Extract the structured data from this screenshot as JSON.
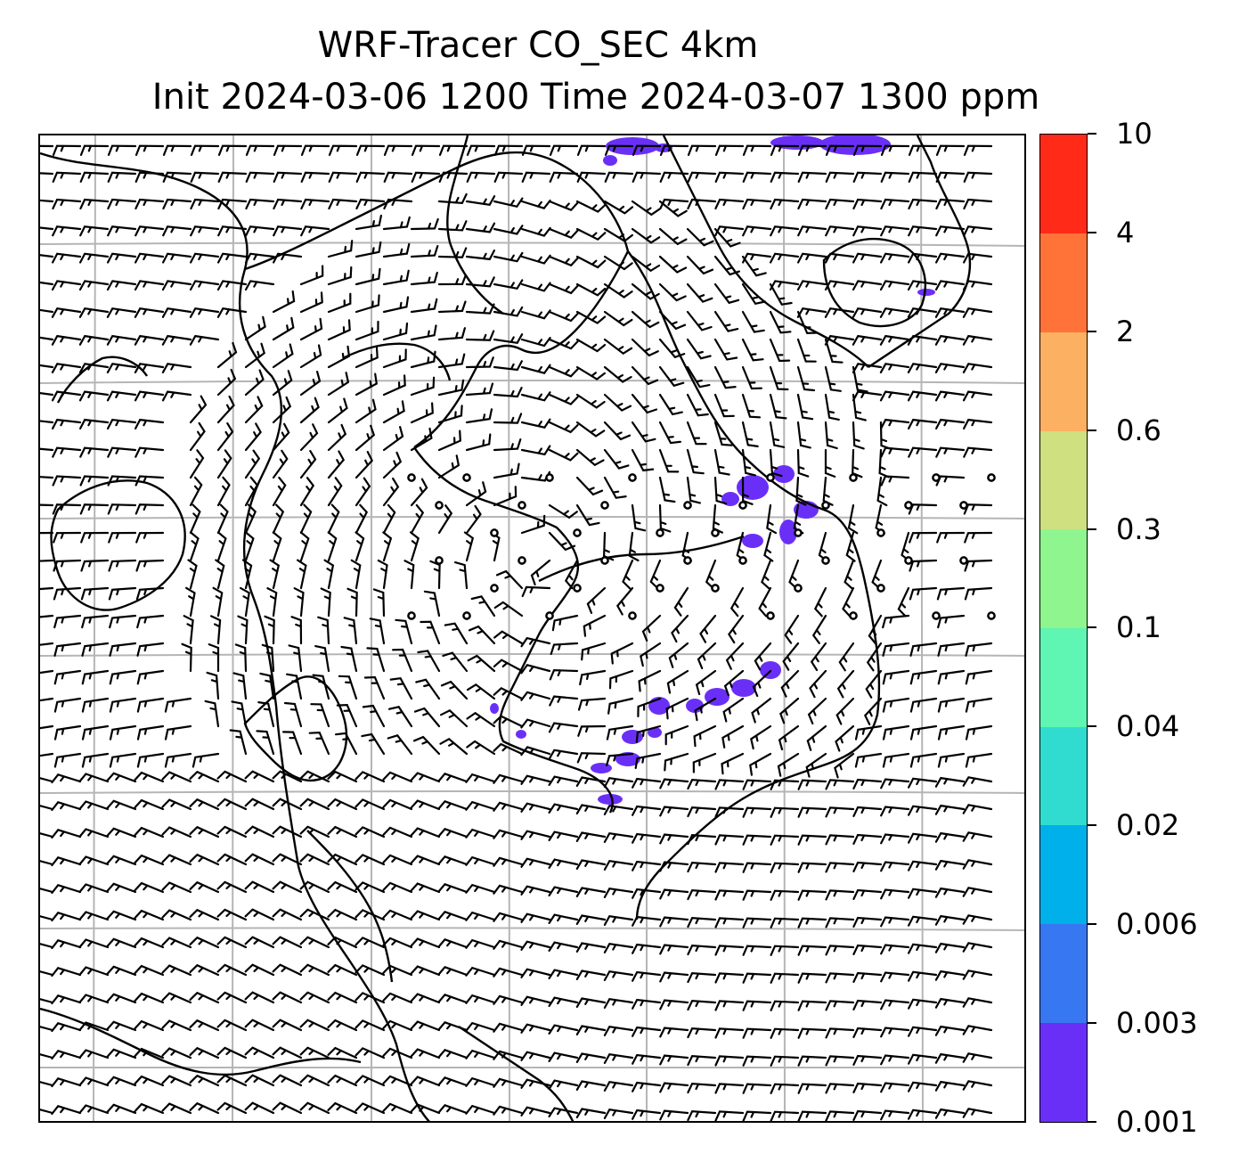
{
  "title": {
    "line1": "WRF-Tracer CO_SEC 4km",
    "line2": "Init 2024-03-06 1200 Time 2024-03-07 1300 ppm"
  },
  "colorbar": {
    "tick_labels": [
      "0.001",
      "0.003",
      "0.006",
      "0.02",
      "0.04",
      "0.1",
      "0.3",
      "0.6",
      "2",
      "4",
      "10"
    ],
    "colors": [
      "#6a2ff7",
      "#3877f2",
      "#00b0ea",
      "#30dccf",
      "#5ff5b2",
      "#8ff58f",
      "#cfe080",
      "#fbb062",
      "#ff7339",
      "#ff2b18"
    ]
  },
  "map": {
    "field": "CO_SEC tracer",
    "units": "ppm",
    "plume_color": "#6a2ff7",
    "overlay": "wind barbs",
    "graticule": "on",
    "coastlines": "on"
  }
}
